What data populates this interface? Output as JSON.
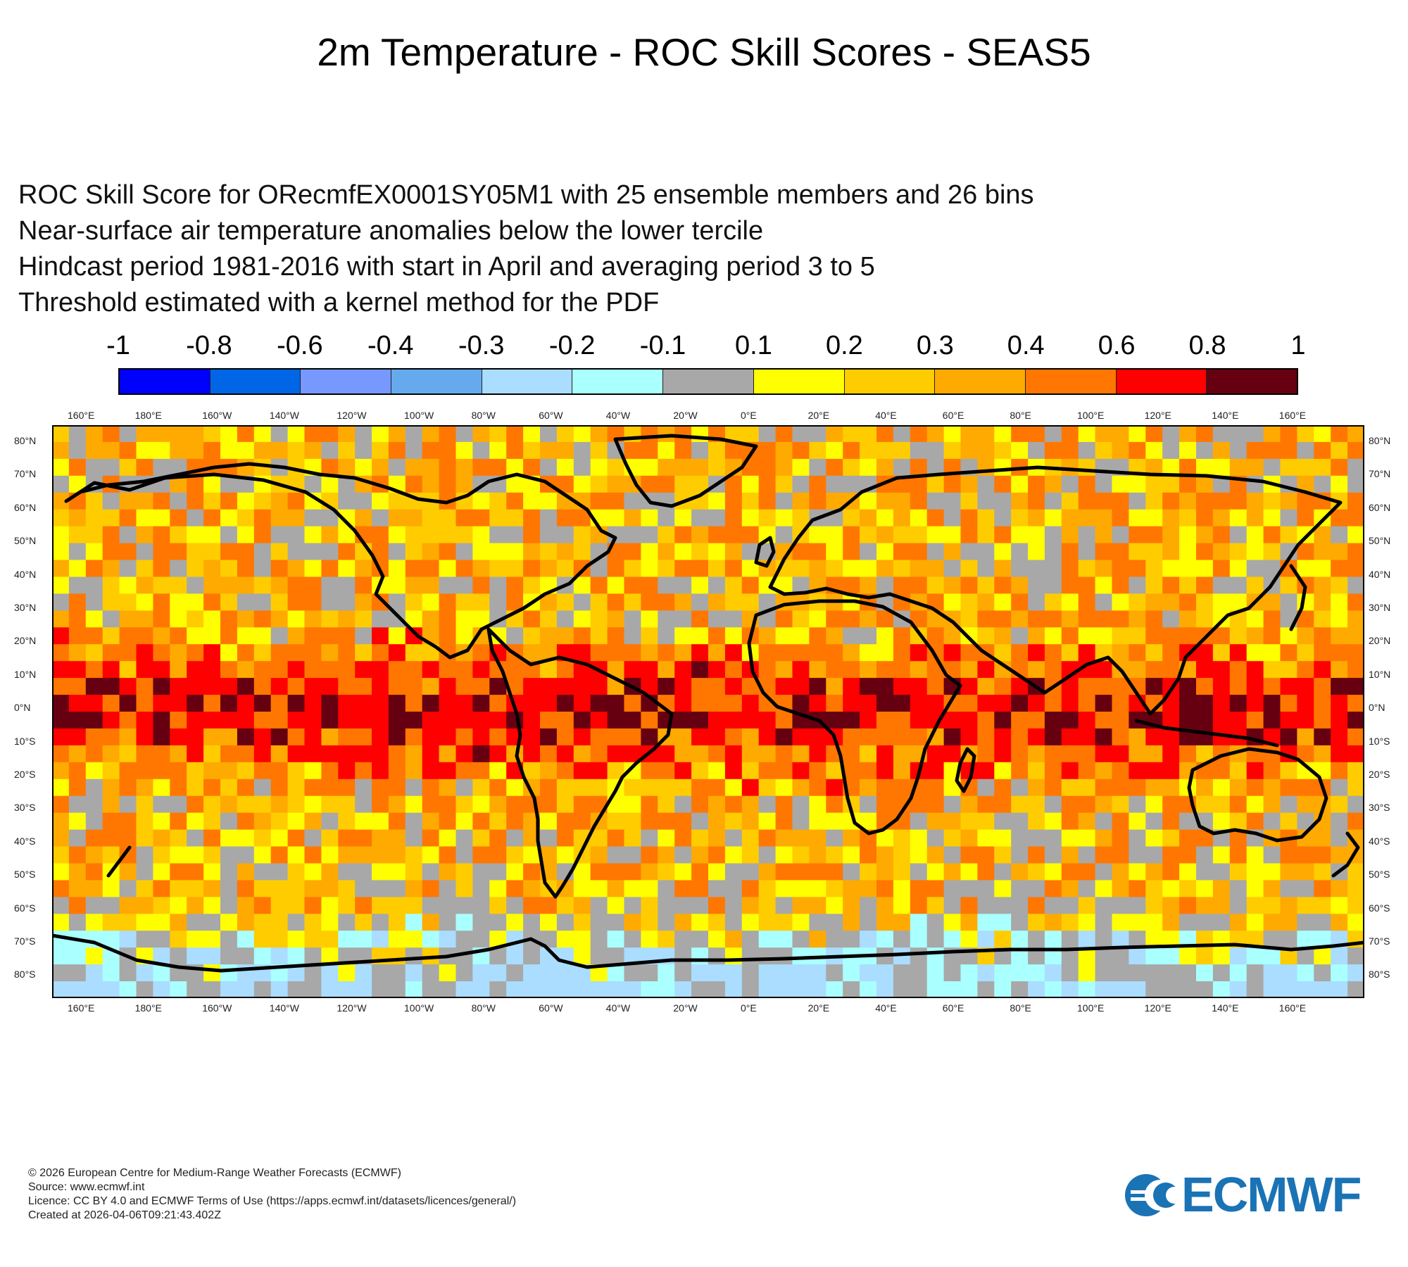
{
  "title": "2m Temperature - ROC Skill Scores - SEAS5",
  "subtitle_lines": [
    "ROC Skill Score for ORecmfEX0001SY05M1 with 25 ensemble members and 26 bins",
    "Near-surface air temperature anomalies below the lower tercile",
    "Hindcast period 1981-2016 with start in April and averaging period  3 to  5",
    "Threshold estimated with a kernel method for the PDF"
  ],
  "colorbar": {
    "labels": [
      "-1",
      "-0.8",
      "-0.6",
      "-0.4",
      "-0.3",
      "-0.2",
      "-0.1",
      "0.1",
      "0.2",
      "0.3",
      "0.4",
      "0.6",
      "0.8",
      "1"
    ],
    "colors": [
      "#0000ff",
      "#0066e6",
      "#7799ff",
      "#66aaee",
      "#aaddff",
      "#aaffff",
      "#a8a8a8",
      "#ffff00",
      "#ffcc00",
      "#ffaa00",
      "#ff7700",
      "#ff0000",
      "#660011"
    ]
  },
  "map": {
    "lon_labels": [
      "160°E",
      "180°E",
      "160°W",
      "140°W",
      "120°W",
      "100°W",
      "80°W",
      "60°W",
      "40°W",
      "20°W",
      "0°E",
      "20°E",
      "40°E",
      "60°E",
      "80°E",
      "100°E",
      "120°E",
      "140°E",
      "160°E"
    ],
    "lat_labels": [
      "80°N",
      "70°N",
      "60°N",
      "50°N",
      "40°N",
      "30°N",
      "20°N",
      "10°N",
      "0°N",
      "10°S",
      "20°S",
      "30°S",
      "40°S",
      "50°S",
      "60°S",
      "70°S",
      "80°S"
    ],
    "lon_range": [
      150,
      540
    ],
    "lat_range": [
      -85,
      85
    ],
    "grid_step_deg": 5
  },
  "footer_lines": [
    "© 2026 European Centre for Medium-Range Weather Forecasts (ECMWF)",
    "Source: www.ecmwf.int",
    "Licence: CC BY 4.0 and ECMWF Terms of Use (https://apps.ecmwf.int/datasets/licences/general/)",
    "Created at 2026-04-06T09:21:43.402Z"
  ],
  "logo_text": "ECMWF"
}
